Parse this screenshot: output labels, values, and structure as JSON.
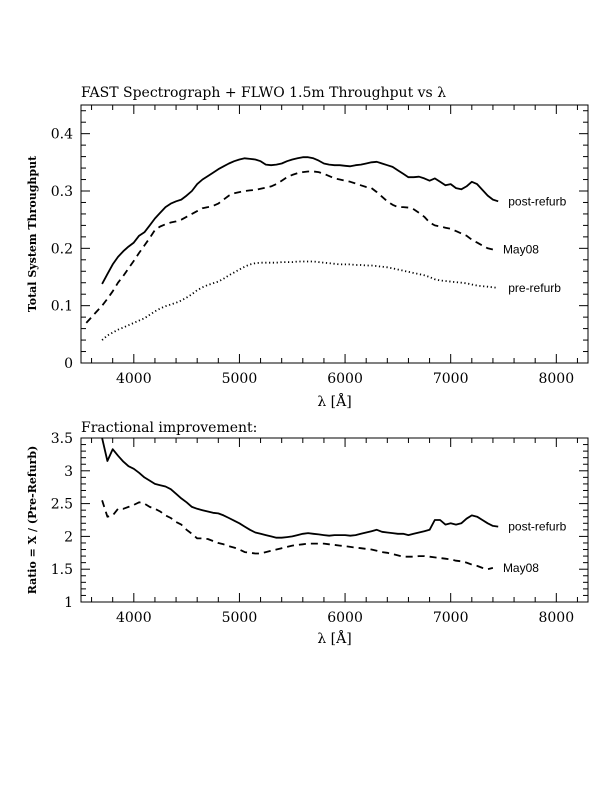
{
  "chart_data": [
    {
      "type": "line",
      "title": "FAST Spectrograph + FLWO 1.5m Throughput vs λ",
      "xlabel": "λ [Å]",
      "ylabel": "Total System Throughput",
      "xlim": [
        3500,
        8300
      ],
      "ylim": [
        0,
        0.45
      ],
      "x_ticks": [
        4000,
        5000,
        6000,
        7000,
        8000
      ],
      "x_tick_labels": [
        "4000",
        "5000",
        "6000",
        "7000",
        "8000"
      ],
      "y_ticks": [
        0,
        0.1,
        0.2,
        0.3,
        0.4
      ],
      "y_tick_labels": [
        "0",
        "0.1",
        "0.2",
        "0.3",
        "0.4"
      ],
      "grid": false,
      "series": [
        {
          "name": "post-refurb",
          "style": "solid",
          "x": [
            3700,
            3750,
            3800,
            3850,
            3900,
            3950,
            4000,
            4050,
            4100,
            4150,
            4200,
            4250,
            4300,
            4350,
            4400,
            4450,
            4500,
            4550,
            4600,
            4650,
            4700,
            4750,
            4800,
            4850,
            4900,
            4950,
            5000,
            5050,
            5100,
            5150,
            5200,
            5250,
            5300,
            5350,
            5400,
            5450,
            5500,
            5550,
            5600,
            5650,
            5700,
            5750,
            5800,
            5850,
            5900,
            5950,
            6000,
            6050,
            6100,
            6150,
            6200,
            6250,
            6300,
            6350,
            6400,
            6450,
            6500,
            6550,
            6600,
            6650,
            6700,
            6750,
            6800,
            6850,
            6900,
            6950,
            7000,
            7050,
            7100,
            7150,
            7200,
            7250,
            7300,
            7350,
            7400,
            7450
          ],
          "y": [
            0.138,
            0.155,
            0.172,
            0.185,
            0.195,
            0.203,
            0.21,
            0.222,
            0.228,
            0.24,
            0.252,
            0.262,
            0.272,
            0.278,
            0.282,
            0.285,
            0.292,
            0.3,
            0.312,
            0.32,
            0.326,
            0.332,
            0.338,
            0.343,
            0.348,
            0.352,
            0.355,
            0.357,
            0.356,
            0.355,
            0.352,
            0.346,
            0.345,
            0.346,
            0.348,
            0.352,
            0.355,
            0.357,
            0.359,
            0.359,
            0.357,
            0.353,
            0.348,
            0.346,
            0.345,
            0.345,
            0.344,
            0.343,
            0.345,
            0.346,
            0.348,
            0.35,
            0.351,
            0.348,
            0.345,
            0.342,
            0.336,
            0.33,
            0.324,
            0.324,
            0.325,
            0.322,
            0.318,
            0.322,
            0.316,
            0.31,
            0.312,
            0.305,
            0.303,
            0.308,
            0.316,
            0.312,
            0.302,
            0.292,
            0.285,
            0.282
          ]
        },
        {
          "name": "May08",
          "style": "dashed",
          "x": [
            3550,
            3600,
            3650,
            3700,
            3750,
            3800,
            3850,
            3900,
            3950,
            4000,
            4050,
            4100,
            4150,
            4200,
            4250,
            4300,
            4350,
            4400,
            4450,
            4500,
            4550,
            4600,
            4650,
            4700,
            4750,
            4800,
            4850,
            4900,
            4950,
            5000,
            5050,
            5100,
            5150,
            5200,
            5250,
            5300,
            5350,
            5400,
            5450,
            5500,
            5550,
            5600,
            5650,
            5700,
            5750,
            5800,
            5850,
            5900,
            5950,
            6000,
            6050,
            6100,
            6150,
            6200,
            6250,
            6300,
            6350,
            6400,
            6450,
            6500,
            6550,
            6600,
            6650,
            6700,
            6750,
            6800,
            6850,
            6900,
            6950,
            7000,
            7050,
            7100,
            7150,
            7200,
            7250,
            7300,
            7350,
            7400
          ],
          "y": [
            0.07,
            0.08,
            0.09,
            0.1,
            0.112,
            0.125,
            0.14,
            0.152,
            0.165,
            0.178,
            0.192,
            0.205,
            0.218,
            0.232,
            0.238,
            0.242,
            0.245,
            0.247,
            0.25,
            0.255,
            0.26,
            0.265,
            0.27,
            0.272,
            0.274,
            0.278,
            0.285,
            0.292,
            0.296,
            0.298,
            0.3,
            0.301,
            0.302,
            0.304,
            0.306,
            0.308,
            0.312,
            0.318,
            0.324,
            0.328,
            0.331,
            0.333,
            0.334,
            0.334,
            0.333,
            0.33,
            0.326,
            0.322,
            0.32,
            0.318,
            0.316,
            0.313,
            0.31,
            0.307,
            0.305,
            0.298,
            0.29,
            0.282,
            0.276,
            0.272,
            0.272,
            0.271,
            0.268,
            0.262,
            0.255,
            0.245,
            0.24,
            0.238,
            0.236,
            0.234,
            0.23,
            0.226,
            0.222,
            0.215,
            0.21,
            0.205,
            0.2,
            0.198
          ]
        },
        {
          "name": "pre-refurb",
          "style": "dotted",
          "x": [
            3700,
            3750,
            3800,
            3850,
            3900,
            3950,
            4000,
            4050,
            4100,
            4150,
            4200,
            4250,
            4300,
            4350,
            4400,
            4450,
            4500,
            4550,
            4600,
            4650,
            4700,
            4750,
            4800,
            4850,
            4900,
            4950,
            5000,
            5050,
            5100,
            5150,
            5200,
            5250,
            5300,
            5350,
            5400,
            5450,
            5500,
            5550,
            5600,
            5650,
            5700,
            5750,
            5800,
            5850,
            5900,
            5950,
            6000,
            6050,
            6100,
            6150,
            6200,
            6250,
            6300,
            6350,
            6400,
            6450,
            6500,
            6550,
            6600,
            6650,
            6700,
            6750,
            6800,
            6850,
            6900,
            6950,
            7000,
            7050,
            7100,
            7150,
            7200,
            7250,
            7300,
            7350,
            7400,
            7450
          ],
          "y": [
            0.04,
            0.048,
            0.053,
            0.058,
            0.062,
            0.066,
            0.07,
            0.074,
            0.078,
            0.084,
            0.09,
            0.095,
            0.099,
            0.102,
            0.105,
            0.109,
            0.114,
            0.12,
            0.127,
            0.132,
            0.136,
            0.139,
            0.142,
            0.147,
            0.153,
            0.158,
            0.163,
            0.168,
            0.172,
            0.174,
            0.175,
            0.175,
            0.175,
            0.175,
            0.176,
            0.176,
            0.176,
            0.177,
            0.177,
            0.177,
            0.177,
            0.176,
            0.175,
            0.174,
            0.173,
            0.172,
            0.172,
            0.172,
            0.171,
            0.171,
            0.17,
            0.17,
            0.169,
            0.168,
            0.167,
            0.165,
            0.163,
            0.161,
            0.159,
            0.157,
            0.155,
            0.153,
            0.15,
            0.146,
            0.144,
            0.143,
            0.142,
            0.141,
            0.14,
            0.139,
            0.137,
            0.135,
            0.134,
            0.133,
            0.132,
            0.131
          ]
        }
      ]
    },
    {
      "type": "line",
      "title": "Fractional improvement:",
      "xlabel": "λ [Å]",
      "ylabel": "Ratio = X / (Pre-Refurb)",
      "xlim": [
        3500,
        8300
      ],
      "ylim": [
        1,
        3.5
      ],
      "x_ticks": [
        4000,
        5000,
        6000,
        7000,
        8000
      ],
      "x_tick_labels": [
        "4000",
        "5000",
        "6000",
        "7000",
        "8000"
      ],
      "y_ticks": [
        1,
        1.5,
        2,
        2.5,
        3,
        3.5
      ],
      "y_tick_labels": [
        "1",
        "1.5",
        "2",
        "2.5",
        "3",
        "3.5"
      ],
      "grid": false,
      "series": [
        {
          "name": "post-refurb",
          "style": "solid",
          "x": [
            3700,
            3750,
            3800,
            3850,
            3900,
            3950,
            4000,
            4050,
            4100,
            4150,
            4200,
            4250,
            4300,
            4350,
            4400,
            4450,
            4500,
            4550,
            4600,
            4650,
            4700,
            4750,
            4800,
            4850,
            4900,
            4950,
            5000,
            5050,
            5100,
            5150,
            5200,
            5250,
            5300,
            5350,
            5400,
            5450,
            5500,
            5550,
            5600,
            5650,
            5700,
            5750,
            5800,
            5850,
            5900,
            5950,
            6000,
            6050,
            6100,
            6150,
            6200,
            6250,
            6300,
            6350,
            6400,
            6450,
            6500,
            6550,
            6600,
            6650,
            6700,
            6750,
            6800,
            6850,
            6900,
            6950,
            7000,
            7050,
            7100,
            7150,
            7200,
            7250,
            7300,
            7350,
            7400,
            7450
          ],
          "y": [
            3.5,
            3.15,
            3.33,
            3.23,
            3.14,
            3.07,
            3.03,
            2.97,
            2.9,
            2.85,
            2.8,
            2.78,
            2.76,
            2.72,
            2.65,
            2.58,
            2.52,
            2.45,
            2.42,
            2.4,
            2.38,
            2.36,
            2.35,
            2.32,
            2.28,
            2.24,
            2.2,
            2.15,
            2.1,
            2.06,
            2.04,
            2.02,
            2.0,
            1.98,
            1.98,
            1.99,
            2.0,
            2.02,
            2.04,
            2.05,
            2.04,
            2.03,
            2.02,
            2.01,
            2.02,
            2.02,
            2.02,
            2.01,
            2.02,
            2.04,
            2.06,
            2.08,
            2.1,
            2.07,
            2.06,
            2.05,
            2.04,
            2.04,
            2.02,
            2.04,
            2.06,
            2.08,
            2.1,
            2.25,
            2.25,
            2.18,
            2.2,
            2.18,
            2.2,
            2.27,
            2.32,
            2.3,
            2.25,
            2.2,
            2.16,
            2.15
          ]
        },
        {
          "name": "May08",
          "style": "dashed",
          "x": [
            3700,
            3750,
            3800,
            3850,
            3900,
            3950,
            4000,
            4050,
            4100,
            4150,
            4200,
            4250,
            4300,
            4350,
            4400,
            4450,
            4500,
            4550,
            4600,
            4650,
            4700,
            4750,
            4800,
            4850,
            4900,
            4950,
            5000,
            5050,
            5100,
            5150,
            5200,
            5250,
            5300,
            5350,
            5400,
            5450,
            5500,
            5550,
            5600,
            5650,
            5700,
            5750,
            5800,
            5850,
            5900,
            5950,
            6000,
            6050,
            6100,
            6150,
            6200,
            6250,
            6300,
            6350,
            6400,
            6450,
            6500,
            6550,
            6600,
            6650,
            6700,
            6750,
            6800,
            6850,
            6900,
            6950,
            7000,
            7050,
            7100,
            7150,
            7200,
            7250,
            7300,
            7350,
            7400
          ],
          "y": [
            2.55,
            2.3,
            2.32,
            2.42,
            2.42,
            2.45,
            2.48,
            2.52,
            2.5,
            2.45,
            2.42,
            2.38,
            2.32,
            2.28,
            2.22,
            2.18,
            2.1,
            2.04,
            1.97,
            1.97,
            1.96,
            1.93,
            1.9,
            1.88,
            1.85,
            1.83,
            1.8,
            1.76,
            1.75,
            1.74,
            1.74,
            1.76,
            1.78,
            1.8,
            1.82,
            1.84,
            1.86,
            1.87,
            1.88,
            1.89,
            1.89,
            1.89,
            1.89,
            1.88,
            1.87,
            1.86,
            1.85,
            1.84,
            1.83,
            1.82,
            1.81,
            1.8,
            1.78,
            1.76,
            1.75,
            1.73,
            1.71,
            1.69,
            1.69,
            1.69,
            1.7,
            1.7,
            1.69,
            1.68,
            1.67,
            1.66,
            1.65,
            1.63,
            1.62,
            1.6,
            1.57,
            1.55,
            1.52,
            1.5,
            1.52
          ]
        }
      ]
    }
  ]
}
